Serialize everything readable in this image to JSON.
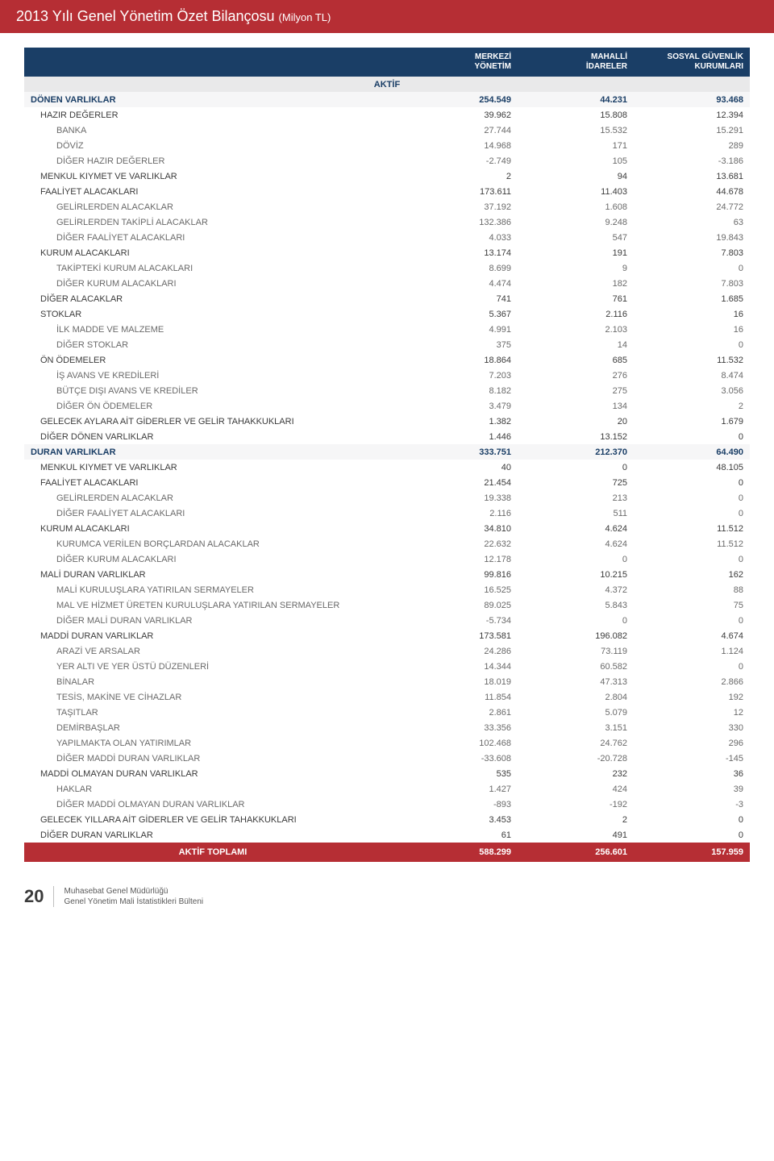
{
  "title_main": "2013 Yılı Genel Yönetim Özet Bilançosu ",
  "title_small": "(Milyon TL)",
  "columns": {
    "c1a": "MERKEZİ",
    "c1b": "YÖNETİM",
    "c2a": "MAHALLİ",
    "c2b": "İDARELER",
    "c3a": "SOSYAL GÜVENLİK",
    "c3b": "KURUMLARI",
    "aktif": "AKTİF"
  },
  "rows": [
    {
      "type": "section",
      "label": "DÖNEN VARLIKLAR",
      "v": [
        "254.549",
        "44.231",
        "93.468"
      ]
    },
    {
      "type": "group",
      "label": "HAZIR DEĞERLER",
      "v": [
        "39.962",
        "15.808",
        "12.394"
      ]
    },
    {
      "type": "sub",
      "label": "BANKA",
      "v": [
        "27.744",
        "15.532",
        "15.291"
      ]
    },
    {
      "type": "sub",
      "label": "DÖVİZ",
      "v": [
        "14.968",
        "171",
        "289"
      ]
    },
    {
      "type": "sub",
      "label": "DİĞER HAZIR DEĞERLER",
      "v": [
        "-2.749",
        "105",
        "-3.186"
      ]
    },
    {
      "type": "group",
      "label": "MENKUL KIYMET VE VARLIKLAR",
      "v": [
        "2",
        "94",
        "13.681"
      ]
    },
    {
      "type": "group",
      "label": "FAALİYET ALACAKLARI",
      "v": [
        "173.611",
        "11.403",
        "44.678"
      ]
    },
    {
      "type": "sub",
      "label": "GELİRLERDEN  ALACAKLAR",
      "v": [
        "37.192",
        "1.608",
        "24.772"
      ]
    },
    {
      "type": "sub",
      "label": "GELİRLERDEN TAKİPLİ ALACAKLAR",
      "v": [
        "132.386",
        "9.248",
        "63"
      ]
    },
    {
      "type": "sub",
      "label": "DİĞER FAALİYET ALACAKLARI",
      "v": [
        "4.033",
        "547",
        "19.843"
      ]
    },
    {
      "type": "group",
      "label": "KURUM ALACAKLARI",
      "v": [
        "13.174",
        "191",
        "7.803"
      ]
    },
    {
      "type": "sub",
      "label": "TAKİPTEKİ KURUM ALACAKLARI",
      "v": [
        "8.699",
        "9",
        "0"
      ]
    },
    {
      "type": "sub",
      "label": "DİĞER KURUM ALACAKLARI",
      "v": [
        "4.474",
        "182",
        "7.803"
      ]
    },
    {
      "type": "group",
      "label": "DİĞER ALACAKLAR",
      "v": [
        "741",
        "761",
        "1.685"
      ]
    },
    {
      "type": "group",
      "label": "STOKLAR",
      "v": [
        "5.367",
        "2.116",
        "16"
      ]
    },
    {
      "type": "sub",
      "label": "İLK MADDE VE MALZEME",
      "v": [
        "4.991",
        "2.103",
        "16"
      ]
    },
    {
      "type": "sub",
      "label": "DİĞER STOKLAR",
      "v": [
        "375",
        "14",
        "0"
      ]
    },
    {
      "type": "group",
      "label": "ÖN ÖDEMELER",
      "v": [
        "18.864",
        "685",
        "11.532"
      ]
    },
    {
      "type": "sub",
      "label": "İŞ AVANS VE KREDİLERİ",
      "v": [
        "7.203",
        "276",
        "8.474"
      ]
    },
    {
      "type": "sub",
      "label": "BÜTÇE DIŞI AVANS VE KREDİLER",
      "v": [
        "8.182",
        "275",
        "3.056"
      ]
    },
    {
      "type": "sub",
      "label": "DİĞER ÖN ÖDEMELER",
      "v": [
        "3.479",
        "134",
        "2"
      ]
    },
    {
      "type": "group",
      "label": "GELECEK AYLARA AİT GİDERLER VE GELİR TAHAKKUKLARI",
      "v": [
        "1.382",
        "20",
        "1.679"
      ]
    },
    {
      "type": "group",
      "label": "DİĞER DÖNEN VARLIKLAR",
      "v": [
        "1.446",
        "13.152",
        "0"
      ]
    },
    {
      "type": "section",
      "label": "DURAN VARLIKLAR",
      "v": [
        "333.751",
        "212.370",
        "64.490"
      ]
    },
    {
      "type": "group",
      "label": "MENKUL KIYMET VE VARLIKLAR",
      "v": [
        "40",
        "0",
        "48.105"
      ]
    },
    {
      "type": "group",
      "label": "FAALİYET ALACAKLARI",
      "v": [
        "21.454",
        "725",
        "0"
      ]
    },
    {
      "type": "sub",
      "label": "GELİRLERDEN ALACAKLAR",
      "v": [
        "19.338",
        "213",
        "0"
      ]
    },
    {
      "type": "sub",
      "label": "DİĞER FAALİYET ALACAKLARI",
      "v": [
        "2.116",
        "511",
        "0"
      ]
    },
    {
      "type": "group",
      "label": "KURUM ALACAKLARI",
      "v": [
        "34.810",
        "4.624",
        "11.512"
      ]
    },
    {
      "type": "sub",
      "label": "KURUMCA VERİLEN BORÇLARDAN ALACAKLAR",
      "v": [
        "22.632",
        "4.624",
        "11.512"
      ]
    },
    {
      "type": "sub",
      "label": "DİĞER KURUM ALACAKLARI",
      "v": [
        "12.178",
        "0",
        "0"
      ]
    },
    {
      "type": "group",
      "label": "MALİ DURAN VARLIKLAR",
      "v": [
        "99.816",
        "10.215",
        "162"
      ]
    },
    {
      "type": "sub",
      "label": "MALİ KURULUŞLARA YATIRILAN SERMAYELER",
      "v": [
        "16.525",
        "4.372",
        "88"
      ]
    },
    {
      "type": "sub",
      "label": "MAL VE HİZMET ÜRETEN KURULUŞLARA YATIRILAN SERMAYELER",
      "v": [
        "89.025",
        "5.843",
        "75"
      ]
    },
    {
      "type": "sub",
      "label": "DİĞER MALİ DURAN VARLIKLAR",
      "v": [
        "-5.734",
        "0",
        "0"
      ]
    },
    {
      "type": "group",
      "label": "MADDİ DURAN VARLIKLAR",
      "v": [
        "173.581",
        "196.082",
        "4.674"
      ]
    },
    {
      "type": "sub",
      "label": "ARAZİ VE ARSALAR",
      "v": [
        "24.286",
        "73.119",
        "1.124"
      ]
    },
    {
      "type": "sub",
      "label": "YER ALTI VE YER ÜSTÜ DÜZENLERİ",
      "v": [
        "14.344",
        "60.582",
        "0"
      ]
    },
    {
      "type": "sub",
      "label": "BİNALAR",
      "v": [
        "18.019",
        "47.313",
        "2.866"
      ]
    },
    {
      "type": "sub",
      "label": "TESİS, MAKİNE VE CİHAZLAR",
      "v": [
        "11.854",
        "2.804",
        "192"
      ]
    },
    {
      "type": "sub",
      "label": "TAŞITLAR",
      "v": [
        "2.861",
        "5.079",
        "12"
      ]
    },
    {
      "type": "sub",
      "label": "DEMİRBAŞLAR",
      "v": [
        "33.356",
        "3.151",
        "330"
      ]
    },
    {
      "type": "sub",
      "label": "YAPILMAKTA OLAN YATIRIMLAR",
      "v": [
        "102.468",
        "24.762",
        "296"
      ]
    },
    {
      "type": "sub",
      "label": "DİĞER MADDİ DURAN VARLIKLAR",
      "v": [
        "-33.608",
        "-20.728",
        "-145"
      ]
    },
    {
      "type": "group",
      "label": "MADDİ OLMAYAN DURAN VARLIKLAR",
      "v": [
        "535",
        "232",
        "36"
      ]
    },
    {
      "type": "sub",
      "label": "HAKLAR",
      "v": [
        "1.427",
        "424",
        "39"
      ]
    },
    {
      "type": "sub",
      "label": "DİĞER MADDİ OLMAYAN DURAN VARLIKLAR",
      "v": [
        "-893",
        "-192",
        "-3"
      ]
    },
    {
      "type": "group",
      "label": "GELECEK YILLARA AİT GİDERLER VE GELİR TAHAKKUKLARI",
      "v": [
        "3.453",
        "2",
        "0"
      ]
    },
    {
      "type": "group",
      "label": "DİĞER DURAN VARLIKLAR",
      "v": [
        "61",
        "491",
        "0"
      ]
    }
  ],
  "total": {
    "label": "AKTİF TOPLAMI",
    "v": [
      "588.299",
      "256.601",
      "157.959"
    ]
  },
  "footer": {
    "page": "20",
    "line1": "Muhasebat Genel Müdürlüğü",
    "line2": "Genel Yönetim Mali İstatistikleri Bülteni"
  }
}
